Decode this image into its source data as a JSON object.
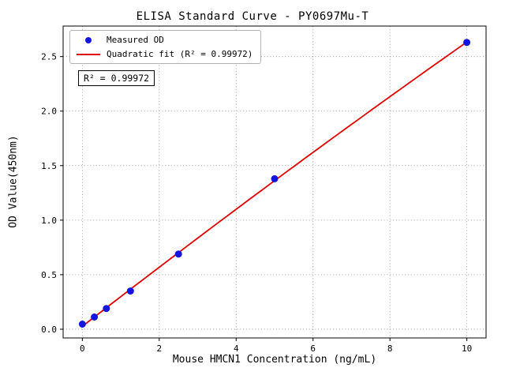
{
  "chart_data": {
    "type": "scatter",
    "title": "ELISA Standard Curve - PY0697Mu-T",
    "xlabel": "Mouse HMCN1 Concentration (ng/mL)",
    "ylabel": "OD Value(450nm)",
    "xlim": [
      -0.5,
      10.5
    ],
    "ylim": [
      -0.08,
      2.78
    ],
    "xticks": [
      0,
      2,
      4,
      6,
      8,
      10
    ],
    "xtick_labels": [
      "0",
      "2",
      "4",
      "6",
      "8",
      "10"
    ],
    "yticks": [
      0.0,
      0.5,
      1.0,
      1.5,
      2.0,
      2.5
    ],
    "ytick_labels": [
      "0.0",
      "0.5",
      "1.0",
      "1.5",
      "2.0",
      "2.5"
    ],
    "grid": true,
    "series": [
      {
        "name": "Measured OD",
        "kind": "points",
        "color": "#1515e0",
        "x": [
          0,
          0.3125,
          0.625,
          1.25,
          2.5,
          5,
          10
        ],
        "y": [
          0.047,
          0.112,
          0.19,
          0.35,
          0.69,
          1.38,
          2.63
        ]
      },
      {
        "name": "Quadratic fit (R² = 0.99972)",
        "kind": "quadratic-fit-line",
        "color": "#e00000"
      }
    ],
    "legend": {
      "position": "upper-left",
      "items": [
        {
          "label": "Measured OD",
          "marker": "point",
          "color": "#1515e0"
        },
        {
          "label": "Quadratic fit (R² = 0.99972)",
          "marker": "line",
          "color": "#e00000"
        }
      ]
    },
    "annotation": "R² = 0.99972"
  }
}
